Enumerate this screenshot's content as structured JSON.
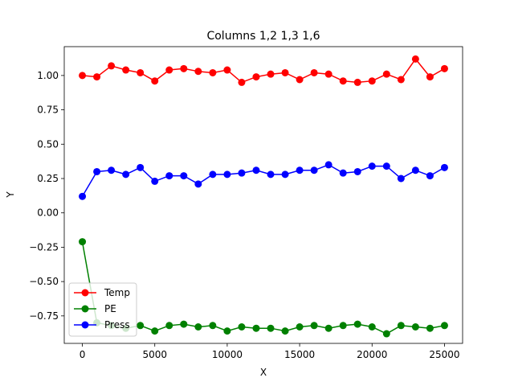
{
  "chart_data": {
    "type": "line",
    "title": "Columns 1,2 1,3 1,6",
    "xlabel": "X",
    "ylabel": "Y",
    "xlim": [
      -1250,
      26250
    ],
    "ylim": [
      -0.95,
      1.21
    ],
    "xticks": [
      0,
      5000,
      10000,
      15000,
      20000,
      25000
    ],
    "xtick_labels": [
      "0",
      "5000",
      "10000",
      "15000",
      "20000",
      "25000"
    ],
    "yticks": [
      1.0,
      0.75,
      0.5,
      0.25,
      0.0,
      -0.25,
      -0.5,
      -0.75
    ],
    "ytick_labels": [
      "1.00",
      "0.75",
      "0.50",
      "0.25",
      "0.00",
      "−0.25",
      "−0.50",
      "−0.75"
    ],
    "grid": false,
    "legend_placement": "lower-left",
    "x": [
      0,
      1000,
      2000,
      3000,
      4000,
      5000,
      6000,
      7000,
      8000,
      9000,
      10000,
      11000,
      12000,
      13000,
      14000,
      15000,
      16000,
      17000,
      18000,
      19000,
      20000,
      21000,
      22000,
      23000,
      24000,
      25000
    ],
    "series": [
      {
        "name": "Temp",
        "color": "#ff0000",
        "values": [
          1.0,
          0.99,
          1.07,
          1.04,
          1.02,
          0.96,
          1.04,
          1.05,
          1.03,
          1.02,
          1.04,
          0.95,
          0.99,
          1.01,
          1.02,
          0.97,
          1.02,
          1.01,
          0.96,
          0.95,
          0.96,
          1.01,
          0.97,
          1.12,
          0.99,
          1.05
        ]
      },
      {
        "name": "PE",
        "color": "#008000",
        "values": [
          -0.21,
          -0.8,
          -0.82,
          -0.84,
          -0.82,
          -0.86,
          -0.82,
          -0.81,
          -0.83,
          -0.82,
          -0.86,
          -0.83,
          -0.84,
          -0.84,
          -0.86,
          -0.83,
          -0.82,
          -0.84,
          -0.82,
          -0.81,
          -0.83,
          -0.88,
          -0.82,
          -0.83,
          -0.84,
          -0.82
        ]
      },
      {
        "name": "Press",
        "color": "#0000ff",
        "values": [
          0.12,
          0.3,
          0.31,
          0.28,
          0.33,
          0.23,
          0.27,
          0.27,
          0.21,
          0.28,
          0.28,
          0.29,
          0.31,
          0.28,
          0.28,
          0.31,
          0.31,
          0.35,
          0.29,
          0.3,
          0.34,
          0.34,
          0.25,
          0.31,
          0.27,
          0.33
        ]
      }
    ]
  }
}
